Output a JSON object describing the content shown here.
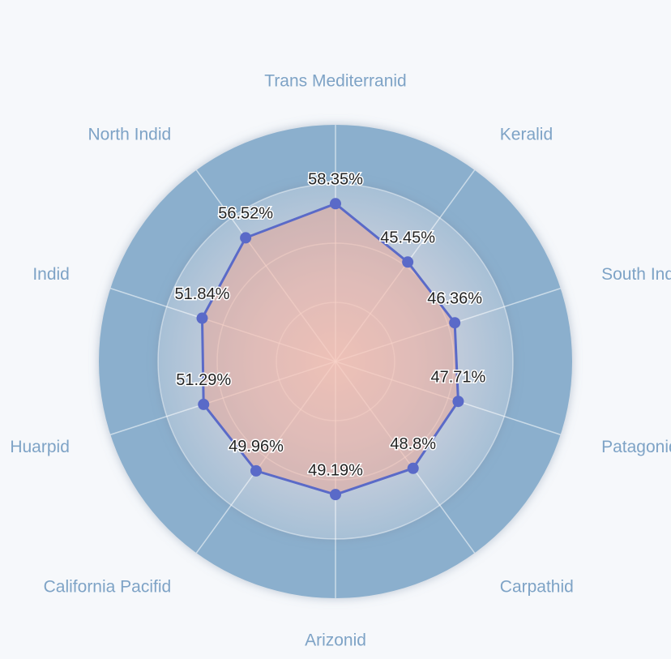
{
  "chart_data": {
    "type": "radar",
    "categories": [
      "Trans Mediterranid",
      "Keralid",
      "South Indid",
      "Patagonid",
      "Carpathid",
      "Arizonid",
      "California Pacifid",
      "Huarpid",
      "Indid",
      "North Indid"
    ],
    "values": [
      58.35,
      45.45,
      46.36,
      47.71,
      48.8,
      49.19,
      49.96,
      51.29,
      51.84,
      56.52
    ],
    "value_labels": [
      "58.35%",
      "45.45%",
      "46.36%",
      "47.71%",
      "48.8%",
      "49.19%",
      "49.96%",
      "51.29%",
      "51.84%",
      "56.52%"
    ],
    "color": "#5a6ac8",
    "rlim": [
      0,
      87.5
    ]
  }
}
